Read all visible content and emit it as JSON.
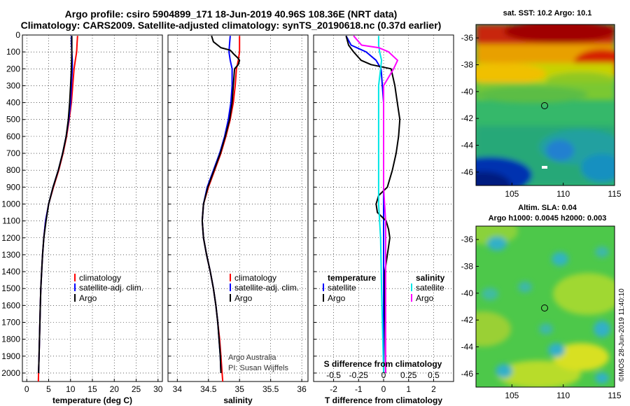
{
  "page": {
    "title_line1": "Argo profile: csiro 5904899_171 18-Jun-2019 40.96S 108.36E (NRT data)",
    "title_line2": "Climatology: CARS2009. Satellite-adjusted climatology: synTS_20190618.nc (0.37d earlier)",
    "credit_line1": "Argo Australia",
    "credit_line2": "PI: Susan Wijffels",
    "stamp": "©IMOS 28-Jun-2019 11:40:10"
  },
  "colors": {
    "climatology": "#ff0000",
    "satellite": "#0000ff",
    "argo": "#000000",
    "sat_salinity": "#00e5e5",
    "argo_salinity": "#ff00ff"
  },
  "chart_data": [
    {
      "type": "line",
      "name": "temperature-profile",
      "xlabel": "temperature (deg C)",
      "ylabel": "",
      "xlim": [
        -1,
        31
      ],
      "ylim": [
        2050,
        0
      ],
      "xticks": [
        "0",
        "5",
        "10",
        "15",
        "20",
        "25",
        "30"
      ],
      "yticks": [
        "0",
        "100",
        "200",
        "300",
        "400",
        "500",
        "600",
        "700",
        "800",
        "900",
        "1000",
        "1100",
        "1200",
        "1300",
        "1400",
        "1500",
        "1600",
        "1700",
        "1800",
        "1900",
        "2000"
      ],
      "legend": [
        "climatology",
        "satellite-adj. clim.",
        "Argo"
      ],
      "series": [
        {
          "name": "climatology",
          "color": "#ff0000",
          "points": [
            [
              11.6,
              5
            ],
            [
              11.5,
              50
            ],
            [
              11.4,
              100
            ],
            [
              11.1,
              150
            ],
            [
              10.8,
              200
            ],
            [
              10.5,
              300
            ],
            [
              10.2,
              400
            ],
            [
              9.7,
              500
            ],
            [
              9.1,
              600
            ],
            [
              8.3,
              700
            ],
            [
              7.3,
              800
            ],
            [
              6.1,
              900
            ],
            [
              5.0,
              1000
            ],
            [
              4.3,
              1100
            ],
            [
              3.9,
              1200
            ],
            [
              3.6,
              1300
            ],
            [
              3.4,
              1400
            ],
            [
              3.2,
              1500
            ],
            [
              3.1,
              1600
            ],
            [
              3.0,
              1700
            ],
            [
              2.9,
              1800
            ],
            [
              2.8,
              1900
            ],
            [
              2.7,
              2000
            ],
            [
              2.65,
              2050
            ]
          ]
        },
        {
          "name": "satellite-adj. clim.",
          "color": "#0000ff",
          "points": [
            [
              10.2,
              5
            ],
            [
              10.2,
              50
            ],
            [
              10.3,
              100
            ],
            [
              10.4,
              150
            ],
            [
              10.4,
              200
            ],
            [
              10.2,
              300
            ],
            [
              10.0,
              400
            ],
            [
              9.6,
              500
            ],
            [
              9.0,
              600
            ],
            [
              8.2,
              700
            ],
            [
              7.2,
              800
            ],
            [
              6.0,
              900
            ],
            [
              5.0,
              1000
            ],
            [
              4.3,
              1100
            ],
            [
              3.9,
              1200
            ],
            [
              3.6,
              1300
            ],
            [
              3.4,
              1400
            ],
            [
              3.2,
              1500
            ],
            [
              3.1,
              1600
            ],
            [
              3.0,
              1700
            ],
            [
              2.9,
              1800
            ],
            [
              2.8,
              1900
            ],
            [
              2.7,
              2000
            ]
          ]
        },
        {
          "name": "Argo",
          "color": "#000000",
          "points": [
            [
              10.3,
              5
            ],
            [
              10.3,
              100
            ],
            [
              10.2,
              200
            ],
            [
              10.0,
              300
            ],
            [
              9.8,
              400
            ],
            [
              9.5,
              500
            ],
            [
              9.0,
              600
            ],
            [
              8.2,
              700
            ],
            [
              7.2,
              800
            ],
            [
              6.0,
              900
            ],
            [
              5.0,
              1000
            ],
            [
              4.4,
              1100
            ],
            [
              3.9,
              1200
            ],
            [
              3.6,
              1300
            ],
            [
              3.4,
              1400
            ],
            [
              3.2,
              1500
            ],
            [
              3.1,
              1600
            ],
            [
              3.0,
              1700
            ],
            [
              2.9,
              1800
            ],
            [
              2.8,
              1900
            ],
            [
              2.7,
              2000
            ]
          ]
        }
      ]
    },
    {
      "type": "line",
      "name": "salinity-profile",
      "xlabel": "salinity",
      "ylabel": "",
      "xlim": [
        33.85,
        36.1
      ],
      "ylim": [
        2050,
        0
      ],
      "xticks": [
        "34",
        "34.5",
        "35",
        "35.5",
        "36"
      ],
      "legend": [
        "climatology",
        "satellite-adj. clim.",
        "Argo"
      ],
      "series": [
        {
          "name": "climatology",
          "color": "#ff0000",
          "points": [
            [
              35.0,
              5
            ],
            [
              35.0,
              100
            ],
            [
              34.98,
              150
            ],
            [
              34.95,
              200
            ],
            [
              34.93,
              300
            ],
            [
              34.9,
              400
            ],
            [
              34.85,
              500
            ],
            [
              34.78,
              600
            ],
            [
              34.7,
              700
            ],
            [
              34.6,
              800
            ],
            [
              34.5,
              900
            ],
            [
              34.42,
              1000
            ],
            [
              34.4,
              1100
            ],
            [
              34.42,
              1200
            ],
            [
              34.47,
              1300
            ],
            [
              34.53,
              1400
            ],
            [
              34.58,
              1500
            ],
            [
              34.62,
              1600
            ],
            [
              34.65,
              1700
            ],
            [
              34.68,
              1800
            ],
            [
              34.7,
              1900
            ],
            [
              34.72,
              2000
            ],
            [
              34.73,
              2050
            ]
          ]
        },
        {
          "name": "satellite-adj. clim.",
          "color": "#0000ff",
          "points": [
            [
              34.85,
              5
            ],
            [
              34.84,
              50
            ],
            [
              34.83,
              100
            ],
            [
              34.85,
              150
            ],
            [
              34.88,
              200
            ],
            [
              34.88,
              300
            ],
            [
              34.86,
              400
            ],
            [
              34.82,
              500
            ],
            [
              34.76,
              600
            ],
            [
              34.68,
              700
            ],
            [
              34.58,
              800
            ],
            [
              34.48,
              900
            ],
            [
              34.42,
              1000
            ],
            [
              34.4,
              1100
            ],
            [
              34.42,
              1200
            ],
            [
              34.47,
              1300
            ],
            [
              34.53,
              1400
            ],
            [
              34.58,
              1500
            ],
            [
              34.62,
              1600
            ],
            [
              34.65,
              1700
            ],
            [
              34.67,
              1800
            ],
            [
              34.69,
              1900
            ],
            [
              34.7,
              2000
            ]
          ]
        },
        {
          "name": "Argo",
          "color": "#000000",
          "points": [
            [
              34.55,
              5
            ],
            [
              34.58,
              40
            ],
            [
              34.7,
              75
            ],
            [
              34.85,
              90
            ],
            [
              34.9,
              110
            ],
            [
              34.97,
              135
            ],
            [
              35.0,
              150
            ],
            [
              34.98,
              175
            ],
            [
              34.92,
              200
            ],
            [
              34.9,
              300
            ],
            [
              34.88,
              400
            ],
            [
              34.84,
              500
            ],
            [
              34.77,
              600
            ],
            [
              34.69,
              700
            ],
            [
              34.59,
              800
            ],
            [
              34.49,
              900
            ],
            [
              34.42,
              1000
            ],
            [
              34.4,
              1100
            ],
            [
              34.42,
              1200
            ],
            [
              34.47,
              1300
            ],
            [
              34.53,
              1400
            ],
            [
              34.58,
              1500
            ],
            [
              34.62,
              1600
            ],
            [
              34.65,
              1700
            ],
            [
              34.67,
              1800
            ],
            [
              34.69,
              1900
            ],
            [
              34.7,
              2000
            ]
          ]
        }
      ]
    },
    {
      "type": "line",
      "name": "difference-profile",
      "xlabel": "T difference from climatology",
      "xlabel2": "S difference from climatology",
      "xlim": [
        -2.8,
        2.8
      ],
      "ylim": [
        2050,
        0
      ],
      "xticks": [
        "-2",
        "-1",
        "0",
        "1",
        "2"
      ],
      "xticks_s": [
        "-0.5",
        "-0.25",
        "0",
        "0.25",
        "0.5"
      ],
      "legend": {
        "temperature_heading": "temperature",
        "salinity_heading": "salinity",
        "satellite": "satellite",
        "argo": "Argo"
      },
      "series": [
        {
          "name": "temperature satellite",
          "color": "#0000ff",
          "points": [
            [
              -1.5,
              5
            ],
            [
              -1.3,
              60
            ],
            [
              -0.7,
              100
            ],
            [
              -0.3,
              150
            ],
            [
              -0.1,
              200
            ],
            [
              0,
              400
            ],
            [
              0,
              900
            ],
            [
              0,
              2000
            ]
          ]
        },
        {
          "name": "temperature Argo",
          "color": "#000000",
          "points": [
            [
              -1.5,
              5
            ],
            [
              -1.4,
              60
            ],
            [
              -1.2,
              100
            ],
            [
              -0.9,
              150
            ],
            [
              -0.5,
              175
            ],
            [
              0.3,
              200
            ],
            [
              0.45,
              300
            ],
            [
              0.55,
              400
            ],
            [
              0.65,
              500
            ],
            [
              0.6,
              600
            ],
            [
              0.5,
              700
            ],
            [
              0.35,
              800
            ],
            [
              0.15,
              900
            ],
            [
              -0.2,
              950
            ],
            [
              -0.3,
              1000
            ],
            [
              -0.25,
              1050
            ],
            [
              0.1,
              1100
            ],
            [
              0.2,
              1150
            ],
            [
              0.25,
              1200
            ],
            [
              0.15,
              1300
            ],
            [
              0.05,
              1400
            ],
            [
              0.05,
              1600
            ],
            [
              0.08,
              2000
            ]
          ]
        },
        {
          "name": "salinity satellite",
          "color": "#00e5e5",
          "points": [
            [
              -0.05,
              5
            ],
            [
              -0.05,
              60
            ],
            [
              -0.04,
              100
            ],
            [
              -0.02,
              150
            ],
            [
              -0.05,
              300
            ],
            [
              -0.05,
              600
            ],
            [
              -0.05,
              900
            ],
            [
              -0.05,
              1000
            ],
            [
              -0.03,
              1200
            ],
            [
              -0.02,
              1500
            ],
            [
              0,
              2000
            ]
          ]
        },
        {
          "name": "salinity Argo",
          "color": "#ff00ff",
          "points": [
            [
              -0.3,
              5
            ],
            [
              -0.22,
              60
            ],
            [
              -0.05,
              75
            ],
            [
              0.05,
              100
            ],
            [
              0.14,
              150
            ],
            [
              0.1,
              200
            ],
            [
              0.0,
              300
            ],
            [
              0.0,
              600
            ],
            [
              0.0,
              900
            ],
            [
              0.01,
              1000
            ],
            [
              0.02,
              1100
            ],
            [
              0.02,
              1500
            ],
            [
              0.02,
              2000
            ]
          ]
        }
      ]
    },
    {
      "type": "heatmap",
      "name": "sst-map",
      "title": "sat. SST: 10.2 Argo: 10.1",
      "xticks": [
        "105",
        "110",
        "115"
      ],
      "yticks": [
        "-36",
        "-38",
        "-40",
        "-42",
        "-44",
        "-46"
      ],
      "xlim": [
        101.5,
        115
      ],
      "ylim": [
        -47,
        -35
      ]
    },
    {
      "type": "heatmap",
      "name": "sla-map",
      "title": "Altim. SLA: 0.04",
      "subtitle": "Argo h1000: 0.0045 h2000: 0.003",
      "xticks": [
        "105",
        "110",
        "115"
      ],
      "yticks": [
        "-36",
        "-38",
        "-40",
        "-42",
        "-44",
        "-46"
      ],
      "xlim": [
        101.5,
        115
      ],
      "ylim": [
        -47,
        -35
      ]
    }
  ]
}
